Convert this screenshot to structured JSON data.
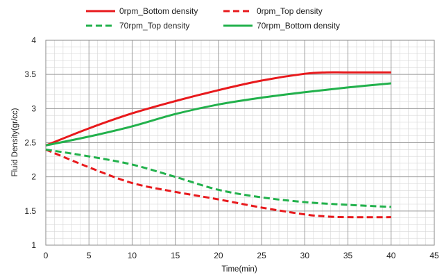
{
  "chart_data": {
    "type": "line",
    "title": "",
    "xlabel": "Time(min)",
    "ylabel": "Fluid Density(gr/cc)",
    "xlim": [
      0,
      45
    ],
    "ylim": [
      1,
      4
    ],
    "x_ticks": [
      0,
      5,
      10,
      15,
      20,
      25,
      30,
      35,
      40,
      45
    ],
    "y_ticks": [
      1,
      1.5,
      2,
      2.5,
      3,
      3.5,
      4
    ],
    "y_tick_labels": [
      "1",
      "1.5",
      "2",
      "2.5",
      "3",
      "3.5",
      "4"
    ],
    "grid": true,
    "minor_grid": true,
    "legend_position": "top",
    "series": [
      {
        "name": "0rpm_Bottom density",
        "color": "#e8191c",
        "dash": "solid",
        "x": [
          0,
          5,
          10,
          15,
          20,
          25,
          30,
          32.5,
          35,
          40
        ],
        "y": [
          2.46,
          2.71,
          2.93,
          3.11,
          3.27,
          3.41,
          3.51,
          3.53,
          3.53,
          3.53
        ]
      },
      {
        "name": "0rpm_Top density",
        "color": "#e8191c",
        "dash": "dashed",
        "x": [
          0,
          5,
          10,
          15,
          20,
          25,
          30,
          32.5,
          35,
          40
        ],
        "y": [
          2.4,
          2.14,
          1.91,
          1.78,
          1.67,
          1.55,
          1.45,
          1.42,
          1.41,
          1.41
        ]
      },
      {
        "name": "70rpm_Top density",
        "color": "#22b14c",
        "dash": "dashed",
        "x": [
          0,
          5,
          10,
          15,
          20,
          25,
          30,
          35,
          40
        ],
        "y": [
          2.4,
          2.3,
          2.18,
          2.0,
          1.81,
          1.7,
          1.63,
          1.59,
          1.56
        ]
      },
      {
        "name": "70rpm_Bottom density",
        "color": "#22b14c",
        "dash": "solid",
        "x": [
          0,
          5,
          10,
          15,
          20,
          25,
          30,
          35,
          40
        ],
        "y": [
          2.46,
          2.59,
          2.74,
          2.92,
          3.06,
          3.16,
          3.24,
          3.31,
          3.37
        ]
      }
    ]
  }
}
